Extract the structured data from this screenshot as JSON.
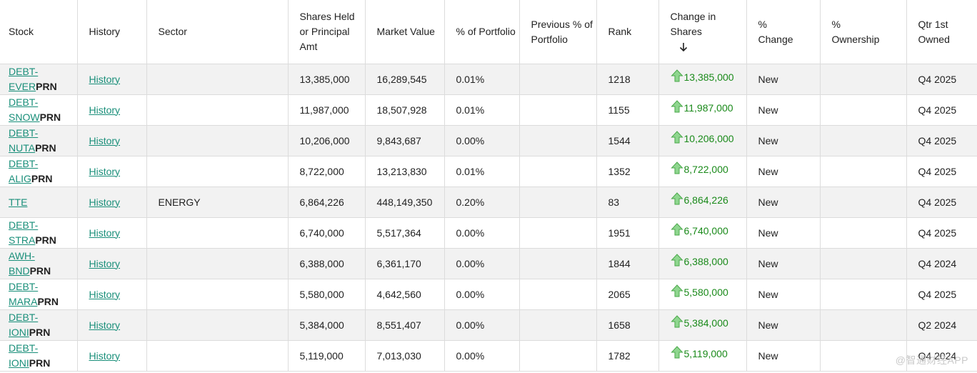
{
  "headers": {
    "stock": "Stock",
    "history": "History",
    "sector": "Sector",
    "shares": "Shares Held or Principal Amt",
    "market_value": "Market Value",
    "pct_portfolio": "% of Portfolio",
    "prev_pct": "Previous % of Portfolio",
    "rank": "Rank",
    "change_shares": "Change in Shares",
    "pct_change": "% Change",
    "pct_ownership": "% Ownership",
    "qtr_first": "Qtr 1st Owned"
  },
  "rows": [
    {
      "ticker_top": "DEBT-",
      "ticker_mid": "EVER",
      "suffix": "PRN",
      "history": "History",
      "sector": "",
      "shares": "13,385,000",
      "market_value": "16,289,545",
      "pct": "0.01%",
      "prev": "",
      "rank": "1218",
      "change": "13,385,000",
      "pct_change": "New",
      "own": "",
      "qtr": "Q4 2025"
    },
    {
      "ticker_top": "DEBT-",
      "ticker_mid": "SNOW",
      "suffix": "PRN",
      "history": "History",
      "sector": "",
      "shares": "11,987,000",
      "market_value": "18,507,928",
      "pct": "0.01%",
      "prev": "",
      "rank": "1155",
      "change": "11,987,000",
      "pct_change": "New",
      "own": "",
      "qtr": "Q4 2025"
    },
    {
      "ticker_top": "DEBT-",
      "ticker_mid": "NUTA",
      "suffix": "PRN",
      "history": "History",
      "sector": "",
      "shares": "10,206,000",
      "market_value": "9,843,687",
      "pct": "0.00%",
      "prev": "",
      "rank": "1544",
      "change": "10,206,000",
      "pct_change": "New",
      "own": "",
      "qtr": "Q4 2025"
    },
    {
      "ticker_top": "DEBT-",
      "ticker_mid": "ALIG",
      "suffix": "PRN",
      "history": "History",
      "sector": "",
      "shares": "8,722,000",
      "market_value": "13,213,830",
      "pct": "0.01%",
      "prev": "",
      "rank": "1352",
      "change": "8,722,000",
      "pct_change": "New",
      "own": "",
      "qtr": "Q4 2025"
    },
    {
      "ticker_top": "TTE",
      "ticker_mid": "",
      "suffix": "",
      "history": "History",
      "sector": "ENERGY",
      "shares": "6,864,226",
      "market_value": "448,149,350",
      "pct": "0.20%",
      "prev": "",
      "rank": "83",
      "change": "6,864,226",
      "pct_change": "New",
      "own": "",
      "qtr": "Q4 2025"
    },
    {
      "ticker_top": "DEBT-",
      "ticker_mid": "STRA",
      "suffix": "PRN",
      "history": "History",
      "sector": "",
      "shares": "6,740,000",
      "market_value": "5,517,364",
      "pct": "0.00%",
      "prev": "",
      "rank": "1951",
      "change": "6,740,000",
      "pct_change": "New",
      "own": "",
      "qtr": "Q4 2025"
    },
    {
      "ticker_top": "AWH-",
      "ticker_mid": "BND",
      "suffix": "PRN",
      "history": "History",
      "sector": "",
      "shares": "6,388,000",
      "market_value": "6,361,170",
      "pct": "0.00%",
      "prev": "",
      "rank": "1844",
      "change": "6,388,000",
      "pct_change": "New",
      "own": "",
      "qtr": "Q4 2024"
    },
    {
      "ticker_top": "DEBT-",
      "ticker_mid": "MARA",
      "suffix": "PRN",
      "history": "History",
      "sector": "",
      "shares": "5,580,000",
      "market_value": "4,642,560",
      "pct": "0.00%",
      "prev": "",
      "rank": "2065",
      "change": "5,580,000",
      "pct_change": "New",
      "own": "",
      "qtr": "Q4 2025"
    },
    {
      "ticker_top": "DEBT-",
      "ticker_mid": "IONI",
      "suffix": "PRN",
      "history": "History",
      "sector": "",
      "shares": "5,384,000",
      "market_value": "8,551,407",
      "pct": "0.00%",
      "prev": "",
      "rank": "1658",
      "change": "5,384,000",
      "pct_change": "New",
      "own": "",
      "qtr": "Q2 2024"
    },
    {
      "ticker_top": "DEBT-",
      "ticker_mid": "IONI",
      "suffix": "PRN",
      "history": "History",
      "sector": "",
      "shares": "5,119,000",
      "market_value": "7,013,030",
      "pct": "0.00%",
      "prev": "",
      "rank": "1782",
      "change": "5,119,000",
      "pct_change": "New",
      "own": "",
      "qtr": "Q4 2024"
    }
  ],
  "watermark": "@智通财经APP",
  "colors": {
    "link": "#1a8f7a",
    "up_arrow": "#6cc36c",
    "change_text": "#1a8a1a",
    "alt_row": "#f2f2f2"
  },
  "icons": {
    "change_up": "up-arrow-icon",
    "sort": "arrow-down-icon"
  },
  "sort": {
    "column": "change_shares",
    "direction": "descending"
  }
}
